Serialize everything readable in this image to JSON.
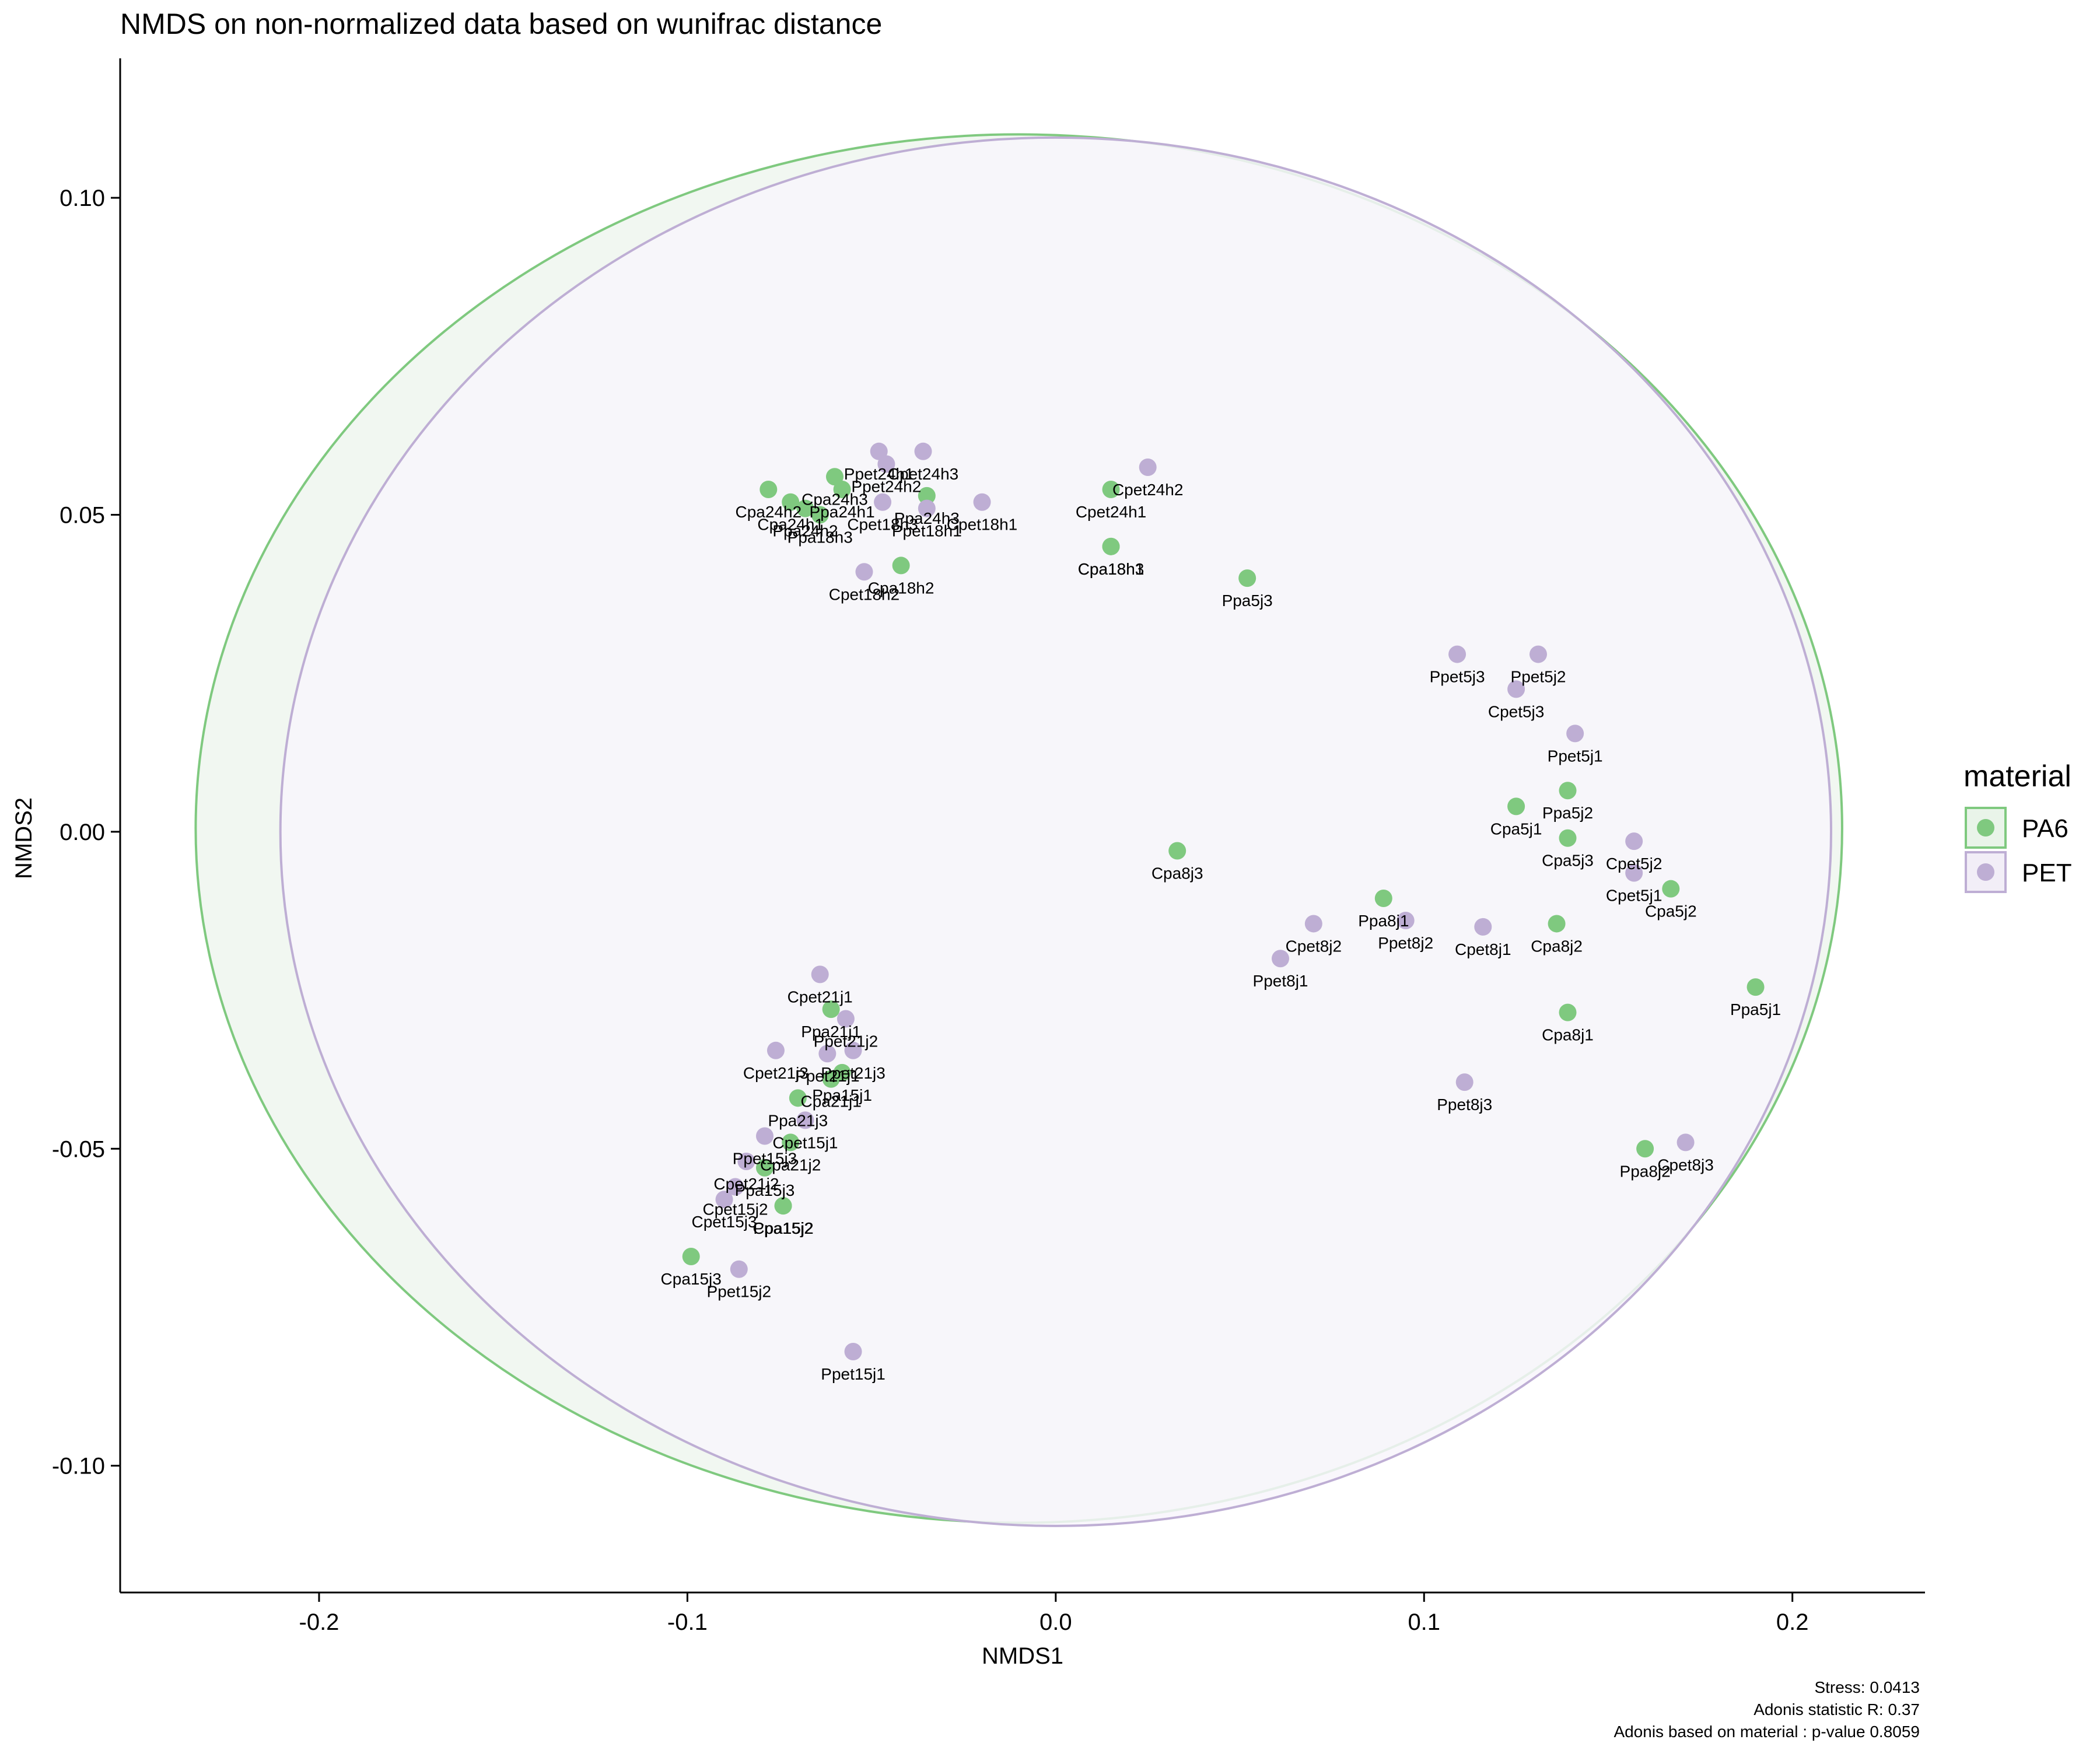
{
  "chart_data": {
    "type": "scatter",
    "title": "NMDS on non-normalized data based on wunifrac distance",
    "xlabel": "NMDS1",
    "ylabel": "NMDS2",
    "xlim": [
      -0.254,
      0.236
    ],
    "ylim": [
      -0.12,
      0.122
    ],
    "xticks": [
      {
        "value": -0.2,
        "label": "-0.2"
      },
      {
        "value": -0.1,
        "label": "-0.1"
      },
      {
        "value": 0.0,
        "label": "0.0"
      },
      {
        "value": 0.1,
        "label": "0.1"
      },
      {
        "value": 0.2,
        "label": "0.2"
      }
    ],
    "yticks": [
      {
        "value": -0.1,
        "label": "-0.10"
      },
      {
        "value": -0.05,
        "label": "-0.05"
      },
      {
        "value": 0.0,
        "label": "0.00"
      },
      {
        "value": 0.05,
        "label": "0.05"
      },
      {
        "value": 0.1,
        "label": "0.10"
      }
    ],
    "grid": false,
    "legend": {
      "title": "material",
      "position": "right",
      "entries": [
        {
          "name": "PA6",
          "color": "#7FC97F"
        },
        {
          "name": "PET",
          "color": "#BEAED4"
        }
      ]
    },
    "series": [
      {
        "name": "PA6",
        "color": "#7FC97F",
        "ellipse": {
          "cx": -0.01,
          "cy": 0.0005,
          "rx": 0.2235,
          "ry": 0.1095,
          "fill": "#EEF6EE",
          "stroke": "#7FC97F"
        },
        "points": [
          {
            "label": "Cpet24h1",
            "x": 0.015,
            "y": 0.054
          },
          {
            "label": "Cpa18h1",
            "x": 0.015,
            "y": 0.045
          },
          {
            "label": "Cpa18h3",
            "x": 0.015,
            "y": 0.045
          },
          {
            "label": "Ppa5j3",
            "x": 0.052,
            "y": 0.04
          },
          {
            "label": "Cpa18h2",
            "x": -0.042,
            "y": 0.042
          },
          {
            "label": "Ppa24h3",
            "x": -0.035,
            "y": 0.053
          },
          {
            "label": "Cpa24h3",
            "x": -0.06,
            "y": 0.056
          },
          {
            "label": "Cpa24h2",
            "x": -0.078,
            "y": 0.054
          },
          {
            "label": "Ppa24h2",
            "x": -0.068,
            "y": 0.051
          },
          {
            "label": "Cpa24h1",
            "x": -0.072,
            "y": 0.052
          },
          {
            "label": "Ppa18h3",
            "x": -0.064,
            "y": 0.05
          },
          {
            "label": "Ppa24h1",
            "x": -0.058,
            "y": 0.054
          },
          {
            "label": "Cpa8j3",
            "x": 0.033,
            "y": -0.003
          },
          {
            "label": "Ppa8j1",
            "x": 0.089,
            "y": -0.0105
          },
          {
            "label": "Cpa5j1",
            "x": 0.125,
            "y": 0.004
          },
          {
            "label": "Ppa5j2",
            "x": 0.139,
            "y": 0.0065
          },
          {
            "label": "Cpa5j3",
            "x": 0.139,
            "y": -0.001
          },
          {
            "label": "Cpa8j2",
            "x": 0.136,
            "y": -0.0145
          },
          {
            "label": "Cpa5j2",
            "x": 0.167,
            "y": -0.009
          },
          {
            "label": "Cpa8j1",
            "x": 0.139,
            "y": -0.0285
          },
          {
            "label": "Ppa5j1",
            "x": 0.19,
            "y": -0.0245
          },
          {
            "label": "Ppa8j2",
            "x": 0.16,
            "y": -0.05
          },
          {
            "label": "Ppa21j1",
            "x": -0.061,
            "y": -0.028
          },
          {
            "label": "Cpa21j1",
            "x": -0.061,
            "y": -0.039
          },
          {
            "label": "Ppa15j1",
            "x": -0.058,
            "y": -0.038
          },
          {
            "label": "Ppa21j3",
            "x": -0.07,
            "y": -0.042
          },
          {
            "label": "Cpa21j2",
            "x": -0.072,
            "y": -0.049
          },
          {
            "label": "Ppa15j3",
            "x": -0.079,
            "y": -0.053
          },
          {
            "label": "Cpa15j2",
            "x": -0.074,
            "y": -0.059
          },
          {
            "label": "Cpa15j3",
            "x": -0.099,
            "y": -0.067
          },
          {
            "label": "Ppa15j2",
            "x": -0.074,
            "y": -0.059
          }
        ]
      },
      {
        "name": "PET",
        "color": "#BEAED4",
        "ellipse": {
          "cx": 0.0,
          "cy": 0.0,
          "rx": 0.2105,
          "ry": 0.1095,
          "fill": "#F8F6FB",
          "stroke": "#BEAED4"
        },
        "points": [
          {
            "label": "Ppet24h1",
            "x": -0.048,
            "y": 0.06
          },
          {
            "label": "Ppet24h2",
            "x": -0.046,
            "y": 0.058
          },
          {
            "label": "Cpet24h3",
            "x": -0.036,
            "y": 0.06
          },
          {
            "label": "Cpet18h1",
            "x": -0.02,
            "y": 0.052
          },
          {
            "label": "Ppet18h1",
            "x": -0.035,
            "y": 0.051
          },
          {
            "label": "Cpet18h3",
            "x": -0.047,
            "y": 0.052
          },
          {
            "label": "Cpet18h2",
            "x": -0.052,
            "y": 0.041
          },
          {
            "label": "Cpet24h2",
            "x": 0.025,
            "y": 0.0575
          },
          {
            "label": "Ppet5j3",
            "x": 0.109,
            "y": 0.028
          },
          {
            "label": "Ppet5j2",
            "x": 0.131,
            "y": 0.028
          },
          {
            "label": "Cpet5j3",
            "x": 0.125,
            "y": 0.0225
          },
          {
            "label": "Ppet5j1",
            "x": 0.141,
            "y": 0.0155
          },
          {
            "label": "Cpet5j2",
            "x": 0.157,
            "y": -0.0015
          },
          {
            "label": "Cpet5j1",
            "x": 0.157,
            "y": -0.0065
          },
          {
            "label": "Ppet8j2",
            "x": 0.095,
            "y": -0.014
          },
          {
            "label": "Cpet8j2",
            "x": 0.07,
            "y": -0.0145
          },
          {
            "label": "Cpet8j1",
            "x": 0.116,
            "y": -0.015
          },
          {
            "label": "Ppet8j1",
            "x": 0.061,
            "y": -0.02
          },
          {
            "label": "Ppet8j3",
            "x": 0.111,
            "y": -0.0395
          },
          {
            "label": "Cpet8j3",
            "x": 0.171,
            "y": -0.049
          },
          {
            "label": "Cpet21j1",
            "x": -0.064,
            "y": -0.0225
          },
          {
            "label": "Ppet21j2",
            "x": -0.057,
            "y": -0.0295
          },
          {
            "label": "Ppet21j1",
            "x": -0.062,
            "y": -0.035
          },
          {
            "label": "Cpet21j3",
            "x": -0.076,
            "y": -0.0345
          },
          {
            "label": "Ppet21j3",
            "x": -0.055,
            "y": -0.0345
          },
          {
            "label": "Cpet15j1",
            "x": -0.068,
            "y": -0.0455
          },
          {
            "label": "Ppet15j3",
            "x": -0.079,
            "y": -0.048
          },
          {
            "label": "Cpet21j2",
            "x": -0.084,
            "y": -0.052
          },
          {
            "label": "Cpet15j2",
            "x": -0.087,
            "y": -0.056
          },
          {
            "label": "Cpet15j3",
            "x": -0.09,
            "y": -0.058
          },
          {
            "label": "Ppet15j2",
            "x": -0.086,
            "y": -0.069
          },
          {
            "label": "Ppet15j1",
            "x": -0.055,
            "y": -0.082
          }
        ]
      }
    ],
    "annotations": [
      "Stress: 0.0413",
      "Adonis statistic R: 0.37",
      "Adonis based on  material : p-value 0.8059"
    ]
  }
}
